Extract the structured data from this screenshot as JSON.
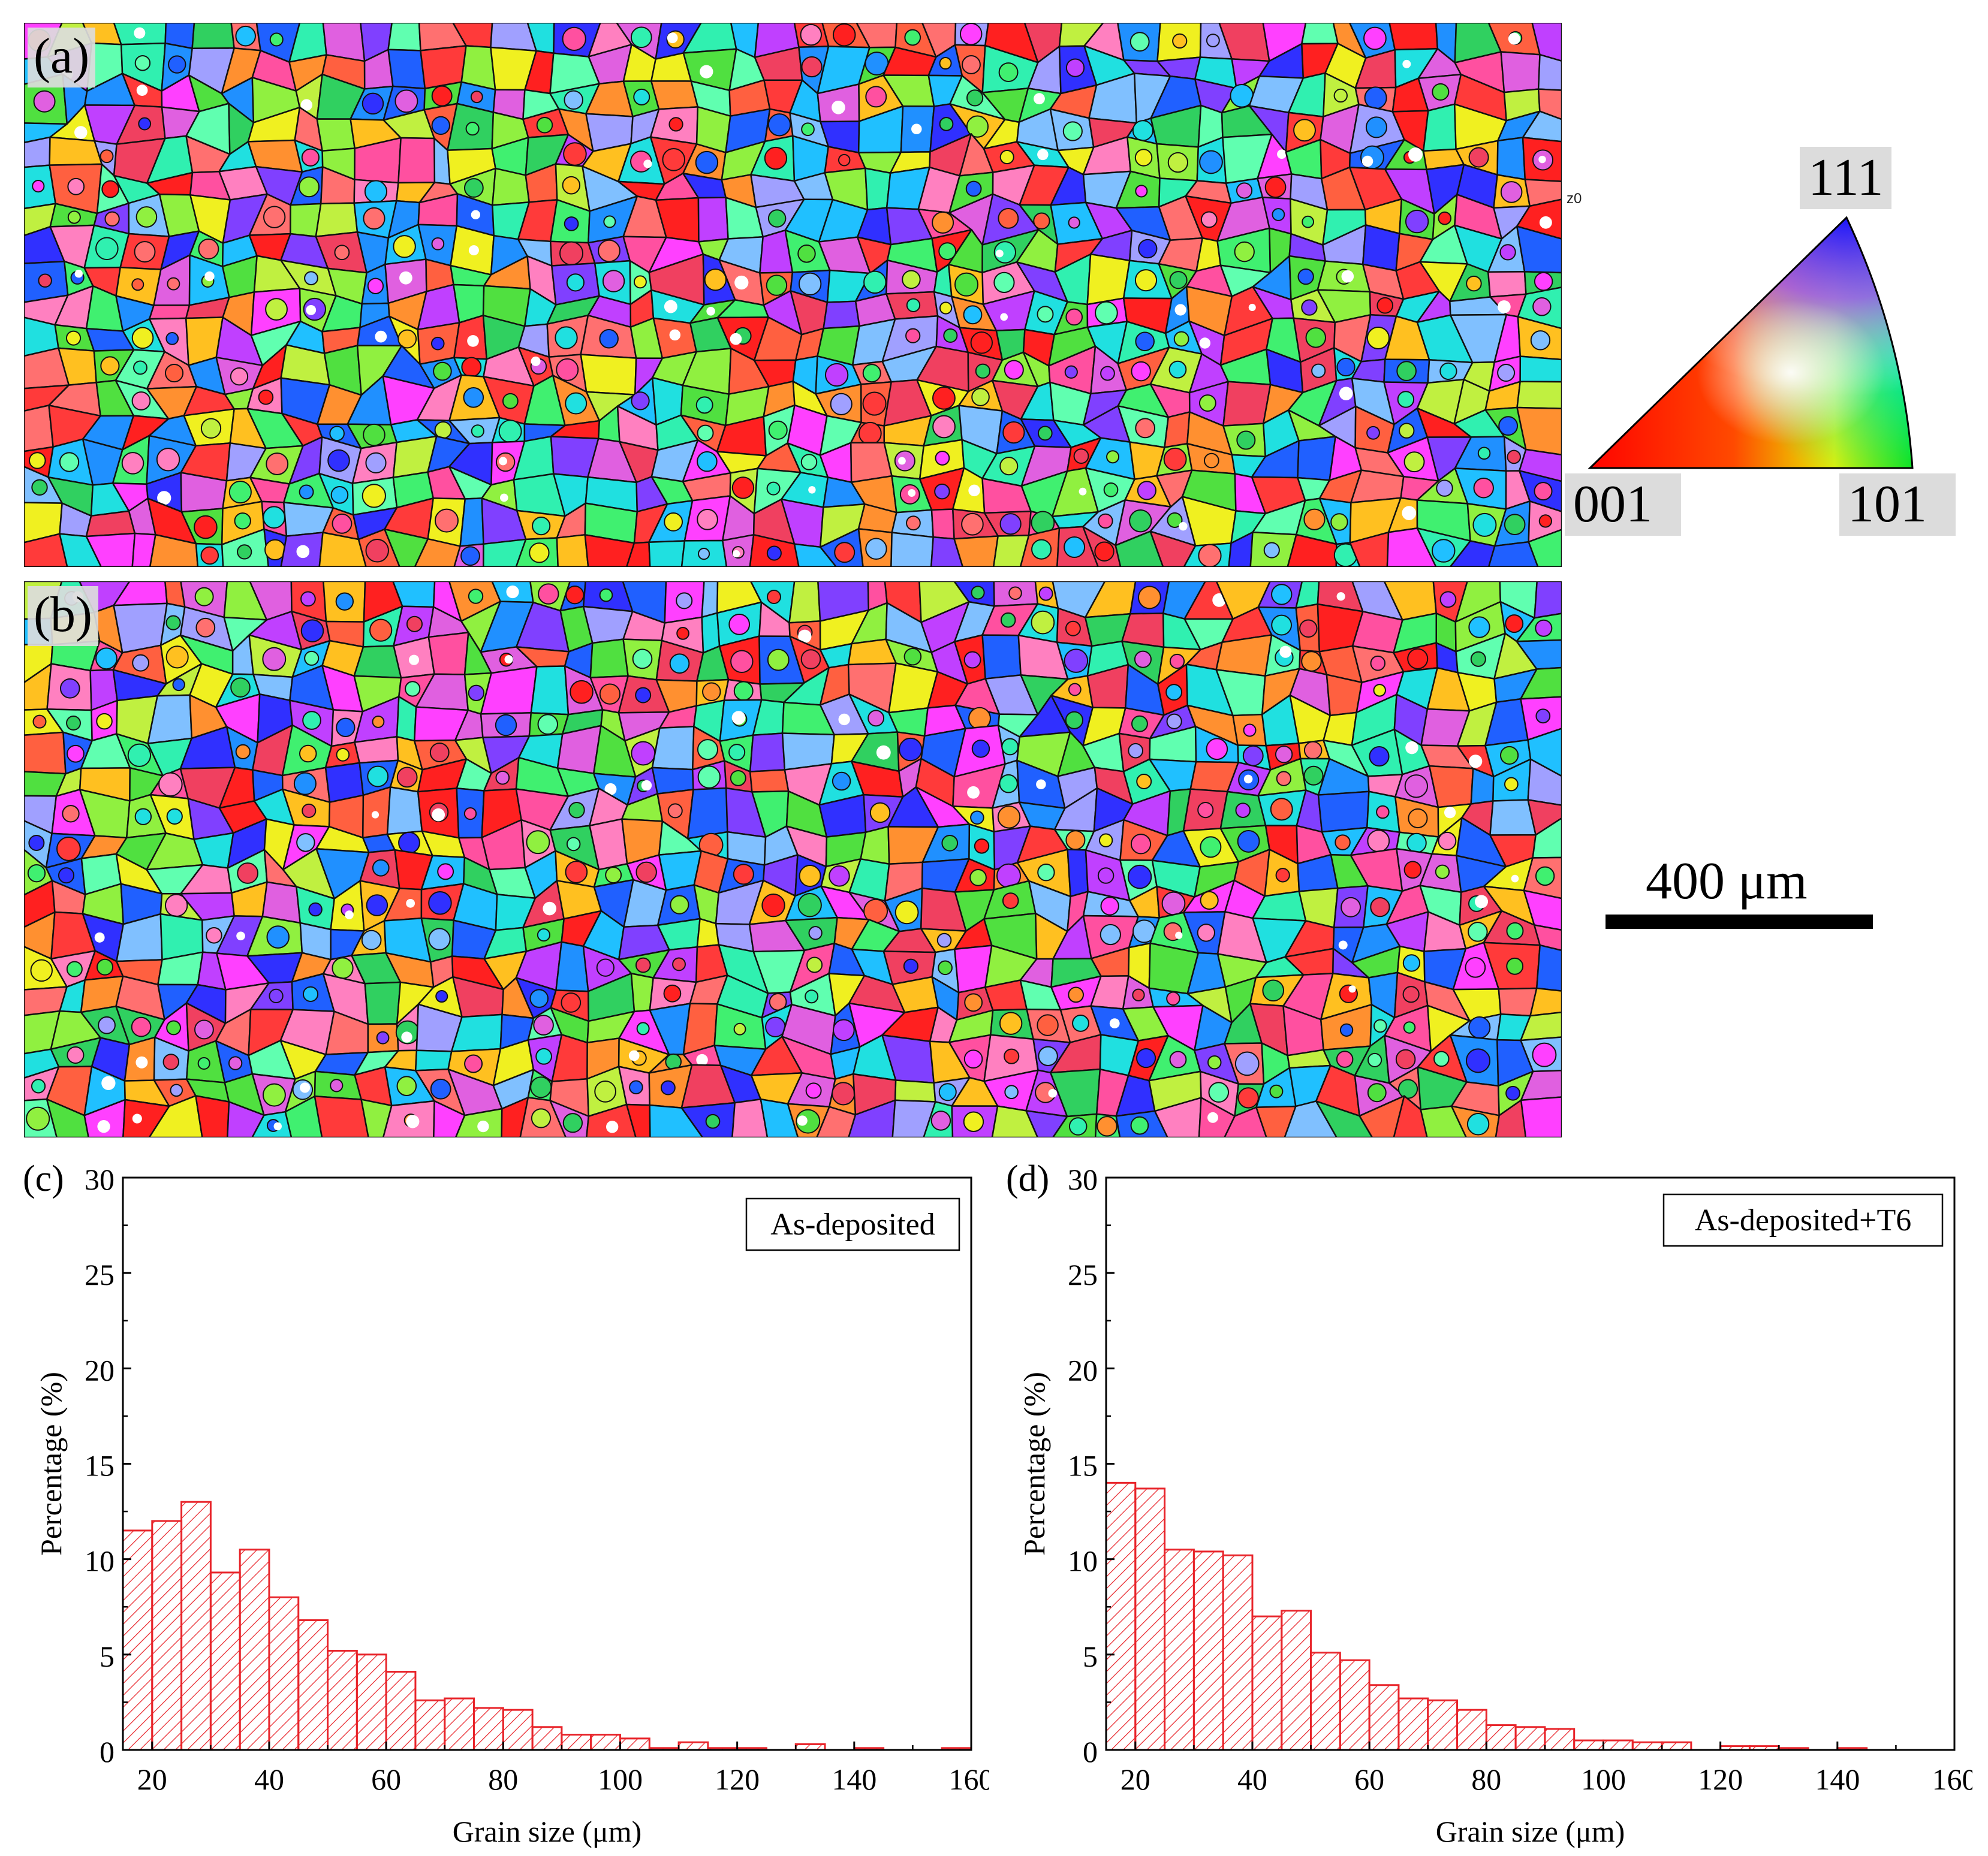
{
  "panels": {
    "a_label": "(a)",
    "b_label": "(b)",
    "c_label": "(c)",
    "d_label": "(d)",
    "map_corner_tag": "z0"
  },
  "ipf_legend": {
    "corner_111": "111",
    "corner_001": "001",
    "corner_101": "101"
  },
  "scale_bar": {
    "label": "400 μm"
  },
  "colors": {
    "bar_stroke": "#e8242a",
    "axis": "#000000"
  },
  "chart_data": [
    {
      "type": "bar",
      "panel": "(c)",
      "legend_text": "As-deposited",
      "xlabel": "Grain size (μm)",
      "ylabel": "Percentage (%)",
      "xlim": [
        15,
        160
      ],
      "ylim": [
        0,
        30
      ],
      "xticks": [
        "20",
        "40",
        "60",
        "80",
        "100",
        "120",
        "140",
        "160"
      ],
      "yticks": [
        "0",
        "5",
        "10",
        "15",
        "20",
        "25",
        "30"
      ],
      "bin_width": 5,
      "bin_starts": [
        15,
        20,
        25,
        30,
        35,
        40,
        45,
        50,
        55,
        60,
        65,
        70,
        75,
        80,
        85,
        90,
        95,
        100,
        105,
        110,
        115,
        120,
        125,
        130,
        135,
        140,
        145,
        150,
        155
      ],
      "values": [
        11.5,
        12.0,
        13.0,
        9.3,
        10.5,
        8.0,
        6.8,
        5.2,
        5.0,
        4.1,
        2.6,
        2.7,
        2.2,
        2.1,
        1.2,
        0.8,
        0.8,
        0.6,
        0.1,
        0.4,
        0.1,
        0.1,
        0.0,
        0.3,
        0.0,
        0.1,
        0.0,
        0.0,
        0.1
      ]
    },
    {
      "type": "bar",
      "panel": "(d)",
      "legend_text": "As-deposited+T6",
      "xlabel": "Grain size (μm)",
      "ylabel": "Percentage (%)",
      "xlim": [
        15,
        160
      ],
      "ylim": [
        0,
        30
      ],
      "xticks": [
        "20",
        "40",
        "60",
        "80",
        "100",
        "120",
        "140",
        "160"
      ],
      "yticks": [
        "0",
        "5",
        "10",
        "15",
        "20",
        "25",
        "30"
      ],
      "bin_width": 5,
      "bin_starts": [
        15,
        20,
        25,
        30,
        35,
        40,
        45,
        50,
        55,
        60,
        65,
        70,
        75,
        80,
        85,
        90,
        95,
        100,
        105,
        110,
        115,
        120,
        125,
        130,
        135,
        140,
        145,
        150,
        155
      ],
      "values": [
        14.0,
        13.7,
        10.5,
        10.4,
        10.2,
        7.0,
        7.3,
        5.1,
        4.7,
        3.4,
        2.7,
        2.6,
        2.1,
        1.3,
        1.2,
        1.1,
        0.5,
        0.5,
        0.4,
        0.4,
        0.0,
        0.2,
        0.2,
        0.1,
        0.0,
        0.1,
        0.0,
        0.0,
        0.0
      ]
    }
  ]
}
